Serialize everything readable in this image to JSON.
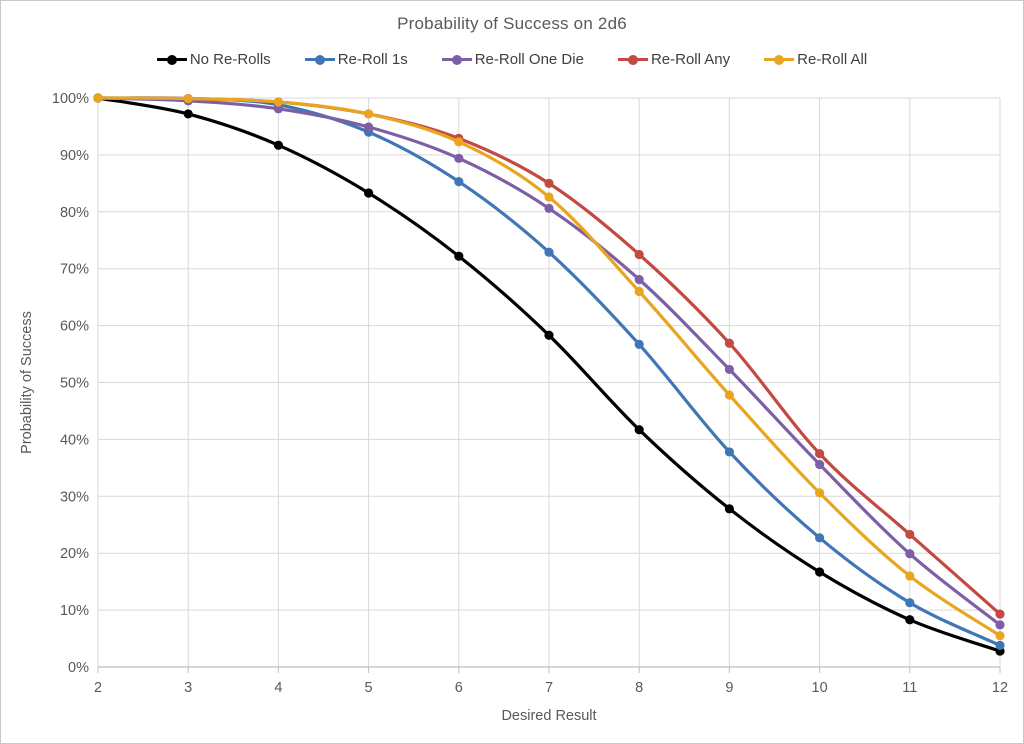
{
  "window": {
    "background": "#ffffff",
    "frame_border_color": "#c9c9c9"
  },
  "chart_data": {
    "type": "line",
    "title": "Probability of Success on 2d6",
    "xlabel": "Desired Result",
    "ylabel": "Probability of Success",
    "x": [
      2,
      3,
      4,
      5,
      6,
      7,
      8,
      9,
      10,
      11,
      12
    ],
    "x_tick_labels": [
      "2",
      "3",
      "4",
      "5",
      "6",
      "7",
      "8",
      "9",
      "10",
      "11",
      "12"
    ],
    "ylim": [
      0,
      100
    ],
    "y_tick_step": 10,
    "y_tick_labels": [
      "0%",
      "10%",
      "20%",
      "30%",
      "40%",
      "50%",
      "60%",
      "70%",
      "80%",
      "90%",
      "100%"
    ],
    "grid": true,
    "legend_position": "top",
    "marker": "circle",
    "line_smoothing": true,
    "series": [
      {
        "name": "No Re-Rolls",
        "color": "#000000",
        "values": [
          100,
          97.2,
          91.7,
          83.3,
          72.2,
          58.3,
          41.7,
          27.8,
          16.7,
          8.3,
          2.8
        ]
      },
      {
        "name": "Re-Roll 1s",
        "color": "#4176b6",
        "values": [
          100,
          99.9,
          98.8,
          94.0,
          85.3,
          72.9,
          56.7,
          37.8,
          22.7,
          11.3,
          3.8
        ]
      },
      {
        "name": "Re-Roll One Die",
        "color": "#7c5fa6",
        "values": [
          100,
          99.5,
          98.1,
          94.9,
          89.4,
          80.6,
          68.1,
          52.3,
          35.6,
          19.9,
          7.4
        ]
      },
      {
        "name": "Re-Roll Any",
        "color": "#c24a42",
        "values": [
          100,
          99.9,
          99.3,
          97.2,
          92.9,
          85.0,
          72.5,
          56.9,
          37.5,
          23.3,
          9.3
        ]
      },
      {
        "name": "Re-Roll All",
        "color": "#e9a420",
        "values": [
          100,
          99.9,
          99.3,
          97.2,
          92.3,
          82.6,
          66.0,
          47.8,
          30.6,
          16.0,
          5.5
        ]
      }
    ]
  },
  "styles": {
    "gridline_color": "#d9d9d9",
    "axis_line_color": "#bfbfbf",
    "tick_label_color": "#595959",
    "axis_title_color": "#595959",
    "title_color": "#595959",
    "legend_text_color": "#3f3f3f"
  }
}
